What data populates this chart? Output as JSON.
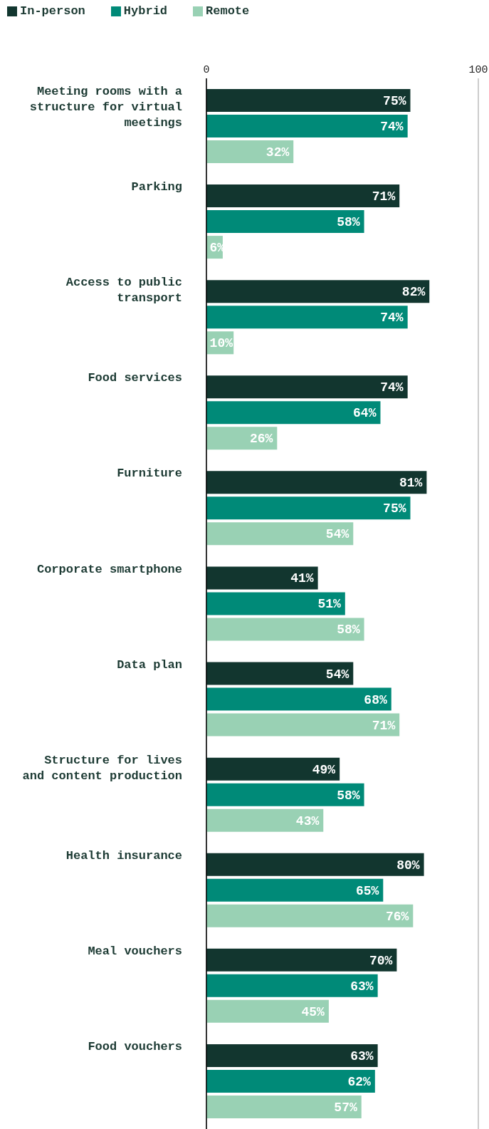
{
  "chart_data": {
    "type": "bar",
    "orientation": "horizontal",
    "legend": "top left",
    "grid": "x",
    "categories": [
      "Meeting rooms with a structure for virtual meetings",
      "Parking",
      "Access to public transport",
      "Food services",
      "Furniture",
      "Corporate smartphone",
      "Data plan",
      "Structure for lives and content production",
      "Health insurance",
      "Meal vouchers",
      "Food vouchers"
    ],
    "xlim": [
      0,
      100
    ],
    "xticks": [
      0,
      100
    ],
    "series": [
      {
        "name": "In-person",
        "color": "#12362f",
        "values": [
          75,
          71,
          82,
          74,
          81,
          41,
          54,
          49,
          80,
          70,
          63
        ],
        "value_labels": [
          "75%",
          "71%",
          "82%",
          "74%",
          "81%",
          "41%",
          "54%",
          "49%",
          "80%",
          "70%",
          "63%"
        ]
      },
      {
        "name": "Hybrid",
        "color": "#008a78",
        "values": [
          74,
          58,
          74,
          64,
          75,
          51,
          68,
          58,
          65,
          63,
          62
        ],
        "value_labels": [
          "74%",
          "58%",
          "74%",
          "64%",
          "75%",
          "51%",
          "68%",
          "58%",
          "65%",
          "63%",
          "62%"
        ]
      },
      {
        "name": "Remote",
        "color": "#99d1b4",
        "values": [
          32,
          6,
          10,
          26,
          54,
          58,
          71,
          43,
          76,
          45,
          57
        ],
        "value_labels": [
          "32%",
          "6%",
          "10%",
          "26%",
          "54%",
          "58%",
          "71%",
          "43%",
          "76%",
          "45%",
          "57%"
        ]
      }
    ]
  }
}
